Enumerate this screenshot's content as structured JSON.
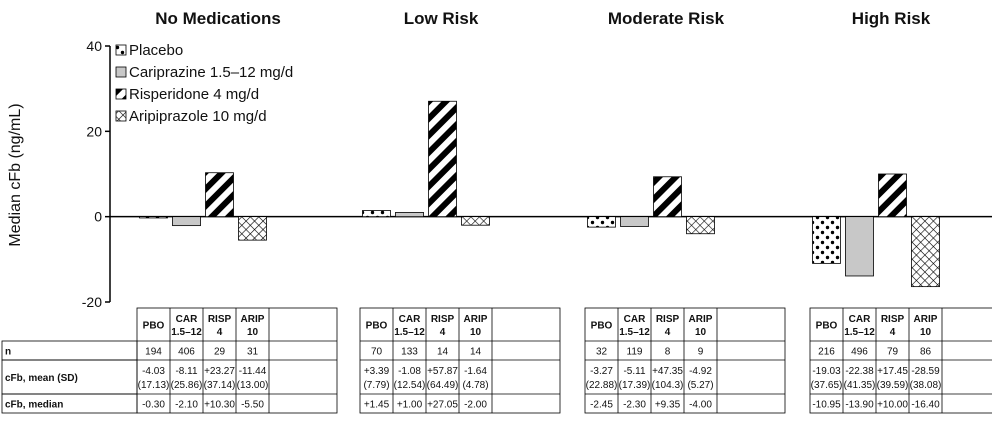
{
  "chart_data": {
    "type": "bar",
    "ylabel": "Median cFb (ng/mL)",
    "ylim": [
      -20,
      40
    ],
    "yticks": [
      -20,
      0,
      20,
      40
    ],
    "grid": false,
    "legend_position": "top-left",
    "series": [
      {
        "name": "Placebo",
        "short": [
          "PBO"
        ],
        "pattern": "dots",
        "values": [
          -0.3,
          1.45,
          -2.45,
          -10.95
        ]
      },
      {
        "name": "Cariprazine 1.5–12 mg/d",
        "short": [
          "CAR",
          "1.5–12"
        ],
        "pattern": "gray",
        "values": [
          -2.1,
          1.0,
          -2.3,
          -13.9
        ]
      },
      {
        "name": "Risperidone 4 mg/d",
        "short": [
          "RISP",
          "4"
        ],
        "pattern": "diagonal",
        "values": [
          10.3,
          27.05,
          9.35,
          10.0
        ]
      },
      {
        "name": "Aripiprazole 10 mg/d",
        "short": [
          "ARIP",
          "10"
        ],
        "pattern": "crosshatch",
        "values": [
          -5.5,
          -2.0,
          -4.0,
          -16.4
        ]
      }
    ],
    "groups": [
      {
        "title": "No Medications",
        "n": [
          "194",
          "406",
          "29",
          "31"
        ],
        "mean": [
          "-4.03",
          "-8.11",
          "+23.27",
          "-11.44"
        ],
        "sd": [
          "(17.13)",
          "(25.86)",
          "(37.14)",
          "(13.00)"
        ],
        "median": [
          "-0.30",
          "-2.10",
          "+10.30",
          "-5.50"
        ]
      },
      {
        "title": "Low Risk",
        "n": [
          "70",
          "133",
          "14",
          "14"
        ],
        "mean": [
          "+3.39",
          "-1.08",
          "+57.87",
          "-1.64"
        ],
        "sd": [
          "(7.79)",
          "(12.54)",
          "(64.49)",
          "(4.78)"
        ],
        "median": [
          "+1.45",
          "+1.00",
          "+27.05",
          "-2.00"
        ]
      },
      {
        "title": "Moderate Risk",
        "n": [
          "32",
          "119",
          "8",
          "9"
        ],
        "mean": [
          "-3.27",
          "-5.11",
          "+47.35",
          "-4.92"
        ],
        "sd": [
          "(22.88)",
          "(17.39)",
          "(104.3)",
          "(5.27)"
        ],
        "median": [
          "-2.45",
          "-2.30",
          "+9.35",
          "-4.00"
        ]
      },
      {
        "title": "High Risk",
        "n": [
          "216",
          "496",
          "79",
          "86"
        ],
        "mean": [
          "-19.03",
          "-22.38",
          "+17.45",
          "-28.59"
        ],
        "sd": [
          "(37.65)",
          "(41.35)",
          "(39.59)",
          "(38.08)"
        ],
        "median": [
          "-10.95",
          "-13.90",
          "+10.00",
          "-16.40"
        ]
      }
    ],
    "table_row_labels": [
      "n",
      "cFb, mean (SD)",
      "cFb, median"
    ]
  }
}
